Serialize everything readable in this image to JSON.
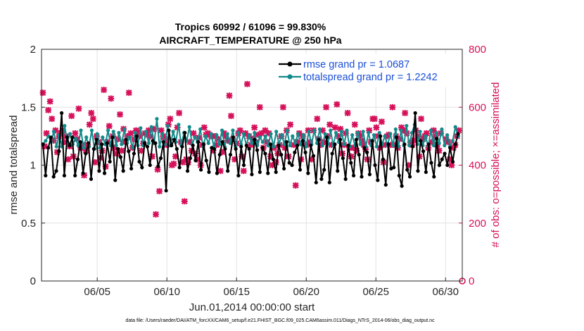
{
  "chart_data": {
    "type": "line",
    "title_line1": "Tropics 60992 / 61096 = 99.830%",
    "title_line2": "AIRCRAFT_TEMPERATURE @ 250 hPa",
    "xlabel": "Jun.01,2014 00:00:00 start",
    "ylabel_left": "rmse and totalspread",
    "ylabel_right": "# of obs: o=possible; ×=assimilated",
    "xlim": [
      1,
      31.2
    ],
    "ylim_left": [
      0,
      2
    ],
    "ylim_right": [
      0,
      800
    ],
    "x_ticks": [
      5,
      10,
      15,
      20,
      25,
      30
    ],
    "x_tick_labels": [
      "06/05",
      "06/10",
      "06/15",
      "06/20",
      "06/25",
      "06/30"
    ],
    "y_ticks_left": [
      "0",
      "0.5",
      "1",
      "1.5",
      "2"
    ],
    "y_ticks_right": [
      "0",
      "200",
      "400",
      "600",
      "800"
    ],
    "legend": [
      "rmse grand pr = 1.0687",
      "totalspread grand pr = 1.2242"
    ],
    "footer": "data file: /Users/raeder/DAI/ATM_forcXX/CAM6_setup/f.e21.FHIST_BGC.f09_025.CAM6assim.011/Diags_NTrS_2014-06/obs_diag_output.nc",
    "colors": {
      "rmse": "#000000",
      "spread": "#138a8a",
      "obs": "#d6105a",
      "legend_text": "#1a4fd6"
    },
    "series": [
      {
        "name": "rmse",
        "axis": "left",
        "values": [
          1.18,
          0.91,
          1.15,
          1.24,
          0.9,
          0.95,
          1.12,
          1.45,
          0.91,
          1.24,
          1.17,
          1.24,
          0.91,
          1.05,
          1.2,
          0.93,
          1.1,
          1.19,
          0.88,
          1.14,
          1.22,
          0.95,
          1.18,
          0.93,
          1.19,
          1.03,
          1.24,
          0.87,
          1.14,
          1.07,
          0.95,
          1.22,
          1.12,
          0.97,
          1.1,
          1.25,
          1.03,
          0.98,
          1.19,
          1.16,
          1.0,
          1.21,
          1.19,
          0.99,
          1.06,
          1.2,
          0.78,
          1.3,
          1.17,
          1.22,
          1.14,
          0.98,
          1.16,
          1.28,
          0.95,
          1.06,
          1.17,
          1.04,
          1.2,
          0.96,
          1.18,
          1.04,
          0.94,
          1.15,
          1.14,
          0.93,
          1.09,
          1.2,
          1.14,
          0.95,
          1.09,
          1.24,
          1.14,
          0.91,
          1.16,
          1.0,
          1.17,
          1.14,
          0.92,
          1.22,
          1.13,
          0.94,
          1.15,
          1.1,
          0.93,
          1.18,
          1.05,
          0.94,
          1.17,
          1.09,
          0.97,
          1.2,
          1.02,
          1.0,
          1.11,
          1.17,
          0.96,
          1.21,
          1.11,
          0.93,
          1.17,
          1.08,
          0.85,
          1.22,
          0.88,
          0.96,
          1.24,
          0.85,
          1.1,
          1.18,
          0.95,
          1.22,
          1.06,
          0.88,
          1.17,
          1.02,
          0.91,
          1.22,
          1.09,
          0.9,
          1.15,
          1.11,
          0.92,
          1.21,
          1.0,
          0.87,
          1.25,
          1.05,
          0.83,
          1.18,
          0.97,
          0.98,
          1.24,
          0.91,
          0.82,
          1.18,
          0.96,
          0.9,
          1.16,
          1.45,
          0.95,
          1.21,
          1.12,
          0.94,
          1.18,
          1.02,
          0.9,
          1.23,
          1.0,
          1.05,
          1.1,
          1.0,
          1.15,
          1.03,
          1.18,
          1.27
        ]
      },
      {
        "name": "totalspread",
        "axis": "left",
        "values": [
          1.18,
          1.21,
          1.25,
          1.2,
          1.29,
          1.16,
          1.26,
          1.16,
          1.34,
          1.2,
          1.27,
          1.18,
          1.23,
          1.17,
          1.3,
          1.15,
          1.24,
          1.16,
          1.3,
          1.14,
          1.27,
          1.15,
          1.24,
          1.18,
          1.3,
          1.17,
          1.29,
          1.17,
          1.28,
          1.18,
          1.31,
          1.19,
          1.24,
          1.15,
          1.28,
          1.17,
          1.32,
          1.17,
          1.29,
          1.19,
          1.33,
          1.19,
          1.4,
          1.16,
          1.27,
          1.18,
          1.34,
          1.17,
          1.29,
          1.2,
          1.35,
          1.17,
          1.28,
          1.21,
          1.33,
          1.18,
          1.24,
          1.2,
          1.31,
          1.16,
          1.25,
          1.19,
          1.27,
          1.16,
          1.26,
          1.18,
          1.3,
          1.16,
          1.27,
          1.19,
          1.3,
          1.16,
          1.28,
          1.18,
          1.27,
          1.17,
          1.26,
          1.19,
          1.28,
          1.17,
          1.24,
          1.2,
          1.25,
          1.17,
          1.27,
          1.16,
          1.29,
          1.18,
          1.26,
          1.18,
          1.3,
          1.17,
          1.25,
          1.19,
          1.27,
          1.18,
          1.26,
          1.16,
          1.29,
          1.18,
          1.3,
          1.19,
          1.31,
          1.17,
          1.27,
          1.18,
          1.3,
          1.17,
          1.28,
          1.2,
          1.29,
          1.18,
          1.3,
          1.16,
          1.26,
          1.17,
          1.28,
          1.18,
          1.29,
          1.16,
          1.28,
          1.17,
          1.26,
          1.16,
          1.28,
          1.18,
          1.25,
          1.17,
          1.27,
          1.17,
          1.31,
          1.16,
          1.3,
          1.17,
          1.34,
          1.17,
          1.28,
          1.35,
          1.18,
          1.29,
          1.17,
          1.25,
          1.16,
          1.3,
          1.17,
          1.28,
          1.19,
          1.31,
          1.17,
          1.26,
          1.16,
          1.21,
          1.33,
          1.25
        ]
      },
      {
        "name": "obs_assimilated",
        "axis": "right",
        "values": [
          650,
          465,
          510,
          590,
          620,
          560,
          485,
          520,
          445,
          500,
          510,
          520,
          480,
          500,
          420,
          465,
          570,
          430,
          510,
          490,
          595,
          460,
          470,
          365,
          450,
          470,
          540,
          580,
          560,
          410,
          500,
          480,
          425,
          450,
          660,
          395,
          480,
          535,
          630,
          500,
          460,
          440,
          490,
          575,
          450,
          525,
          480,
          500,
          650,
          510,
          460,
          490,
          520,
          515,
          500,
          450,
          475,
          510,
          505,
          520,
          500,
          430,
          525,
          230,
          385,
          310,
          520,
          500,
          490,
          470,
          540,
          560,
          400,
          405,
          430,
          530,
          580,
          480,
          410,
          275,
          420,
          410,
          480,
          450,
          510,
          440,
          420,
          495,
          400,
          470,
          530,
          505,
          510,
          505,
          500,
          450,
          500,
          470,
          490,
          380,
          445,
          510,
          500,
          485,
          640,
          570,
          490,
          420,
          475,
          510,
          520,
          430,
          380,
          510,
          680,
          500,
          470,
          490,
          530,
          480,
          505,
          600,
          510,
          460,
          520,
          480,
          510,
          430,
          400,
          460,
          410,
          440,
          470,
          500,
          600,
          460,
          520,
          430,
          540,
          680,
          470,
          330,
          480,
          510,
          420,
          500,
          700,
          470,
          520,
          480,
          420,
          520,
          700,
          560,
          490,
          470,
          520,
          480,
          600,
          500,
          540,
          470,
          700,
          530,
          610,
          500,
          525,
          440,
          470,
          510,
          580,
          460,
          430,
          460,
          540,
          450,
          510,
          500,
          485,
          470,
          455,
          420,
          520,
          480,
          560,
          560,
          530,
          500,
          460,
          550,
          410,
          470,
          500,
          505,
          470,
          600,
          470,
          500,
          460,
          490,
          530,
          520,
          580,
          510,
          400,
          480,
          470,
          485,
          520,
          500,
          430,
          560,
          490,
          500,
          510,
          460,
          750,
          480,
          520,
          500,
          470,
          450,
          510,
          680,
          700,
          490,
          480,
          420,
          400,
          460,
          470,
          500,
          520
        ]
      },
      {
        "name": "obs_possible",
        "axis": "right",
        "values": [
          0
        ]
      }
    ]
  }
}
